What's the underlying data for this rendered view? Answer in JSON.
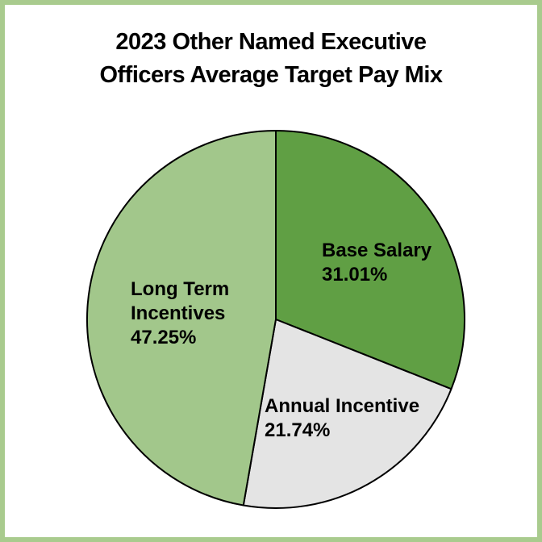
{
  "page": {
    "background_color": "#ffffff",
    "border_color": "#a9cb8e",
    "text_color": "#000000"
  },
  "title": {
    "line1": "2023 Other Named Executive",
    "line2": "Officers Average Target Pay Mix"
  },
  "chart_data": {
    "type": "pie",
    "title": "2023 Other Named Executive Officers Average Target Pay Mix",
    "start_angle_deg": 0,
    "direction": "clockwise",
    "legend": "none",
    "labels_on_slices": true,
    "stroke_color": "#000000",
    "stroke_width": 2,
    "slices": [
      {
        "label": "Base Salary",
        "value_pct": 31.01,
        "pct_label": "31.01%",
        "color": "#609f44"
      },
      {
        "label": "Annual Incentive",
        "value_pct": 21.74,
        "pct_label": "21.74%",
        "color": "#e4e4e4"
      },
      {
        "label": "Long Term Incentives",
        "value_pct": 47.25,
        "pct_label": "47.25%",
        "color": "#a2c78b"
      }
    ]
  }
}
